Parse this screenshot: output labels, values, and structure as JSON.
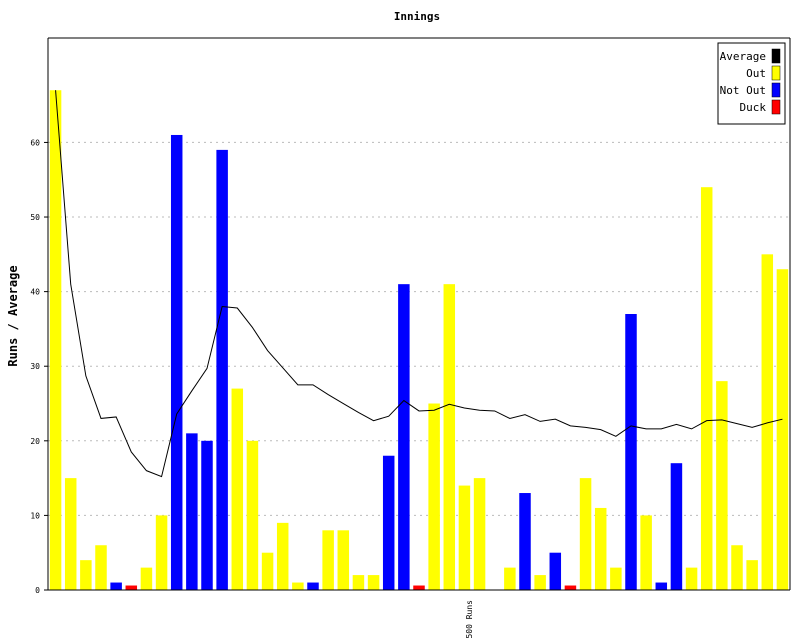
{
  "chart_data": {
    "type": "bar",
    "title": "Innings",
    "xlabel": "",
    "ylabel": "Runs / Average",
    "ylim": [
      0,
      74
    ],
    "yticks": [
      0,
      10,
      20,
      30,
      40,
      50,
      60
    ],
    "grid": true,
    "legend_position": "top-right",
    "legend": [
      {
        "label": "Average",
        "color": "#000000"
      },
      {
        "label": "Out",
        "color": "#ffff00"
      },
      {
        "label": "Not Out",
        "color": "#0000ff"
      },
      {
        "label": "Duck",
        "color": "#ff0000"
      }
    ],
    "markers": [
      {
        "label": "500 Runs",
        "after_innings": 28
      }
    ],
    "innings": [
      {
        "runs": 67,
        "status": "Out"
      },
      {
        "runs": 15,
        "status": "Out"
      },
      {
        "runs": 4,
        "status": "Out"
      },
      {
        "runs": 6,
        "status": "Out"
      },
      {
        "runs": 1,
        "status": "Not Out"
      },
      {
        "runs": 0,
        "status": "Duck"
      },
      {
        "runs": 3,
        "status": "Out"
      },
      {
        "runs": 10,
        "status": "Out"
      },
      {
        "runs": 61,
        "status": "Not Out"
      },
      {
        "runs": 21,
        "status": "Not Out"
      },
      {
        "runs": 20,
        "status": "Not Out"
      },
      {
        "runs": 59,
        "status": "Not Out"
      },
      {
        "runs": 27,
        "status": "Out"
      },
      {
        "runs": 20,
        "status": "Out"
      },
      {
        "runs": 5,
        "status": "Out"
      },
      {
        "runs": 9,
        "status": "Out"
      },
      {
        "runs": 1,
        "status": "Out"
      },
      {
        "runs": 1,
        "status": "Not Out"
      },
      {
        "runs": 8,
        "status": "Out"
      },
      {
        "runs": 8,
        "status": "Out"
      },
      {
        "runs": 2,
        "status": "Out"
      },
      {
        "runs": 2,
        "status": "Out"
      },
      {
        "runs": 18,
        "status": "Not Out"
      },
      {
        "runs": 41,
        "status": "Not Out"
      },
      {
        "runs": 0,
        "status": "Duck"
      },
      {
        "runs": 25,
        "status": "Out"
      },
      {
        "runs": 41,
        "status": "Out"
      },
      {
        "runs": 14,
        "status": "Out"
      },
      {
        "runs": 15,
        "status": "Out"
      },
      {
        "runs": 0,
        "status": "Out"
      },
      {
        "runs": 3,
        "status": "Out"
      },
      {
        "runs": 13,
        "status": "Not Out"
      },
      {
        "runs": 2,
        "status": "Out"
      },
      {
        "runs": 5,
        "status": "Not Out"
      },
      {
        "runs": 0,
        "status": "Duck"
      },
      {
        "runs": 15,
        "status": "Out"
      },
      {
        "runs": 11,
        "status": "Out"
      },
      {
        "runs": 3,
        "status": "Out"
      },
      {
        "runs": 37,
        "status": "Not Out"
      },
      {
        "runs": 10,
        "status": "Out"
      },
      {
        "runs": 1,
        "status": "Not Out"
      },
      {
        "runs": 17,
        "status": "Not Out"
      },
      {
        "runs": 3,
        "status": "Out"
      },
      {
        "runs": 54,
        "status": "Out"
      },
      {
        "runs": 28,
        "status": "Out"
      },
      {
        "runs": 6,
        "status": "Out"
      },
      {
        "runs": 4,
        "status": "Out"
      },
      {
        "runs": 45,
        "status": "Out"
      },
      {
        "runs": 43,
        "status": "Out"
      }
    ],
    "average": [
      67,
      41,
      28.7,
      23,
      23.2,
      18.5,
      16,
      15.2,
      23.6,
      26.7,
      29.7,
      38,
      37.8,
      35.2,
      32.1,
      29.8,
      27.5,
      27.5,
      26.2,
      25,
      23.8,
      22.7,
      23.3,
      25.4,
      24,
      24.1,
      24.9,
      24.4,
      24.1,
      24,
      23,
      23.5,
      22.6,
      22.9,
      22,
      21.8,
      21.5,
      20.6,
      22,
      21.6,
      21.6,
      22.2,
      21.6,
      22.7,
      22.8,
      22.3,
      21.8,
      22.4,
      22.9
    ]
  }
}
